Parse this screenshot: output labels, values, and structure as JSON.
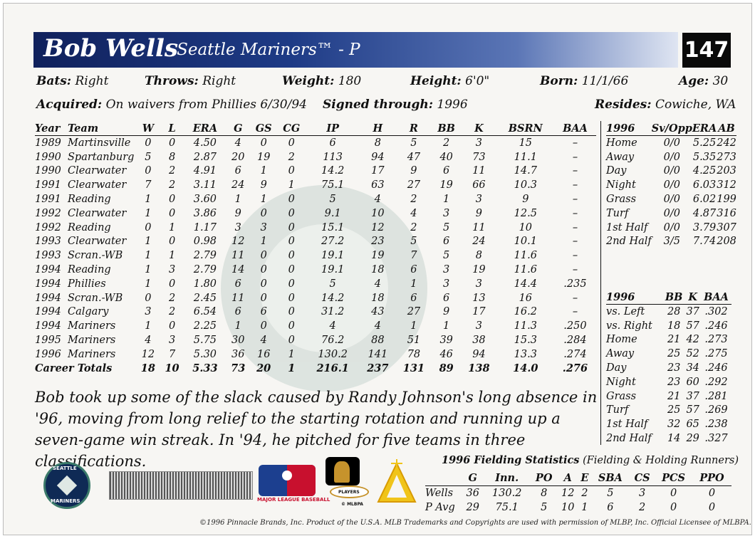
{
  "header": {
    "name": "Bob Wells",
    "team_position": "- Seattle Mariners™ - P",
    "card_number": "147"
  },
  "bio": {
    "bats_label": "Bats:",
    "bats": "Right",
    "throws_label": "Throws:",
    "throws": "Right",
    "weight_label": "Weight:",
    "weight": "180",
    "height_label": "Height:",
    "height": "6'0\"",
    "born_label": "Born:",
    "born": "11/1/66",
    "age_label": "Age:",
    "age": "30",
    "acquired_label": "Acquired:",
    "acquired": "On waivers from Phillies 6/30/94",
    "signed_label": "Signed through:",
    "signed": "1996",
    "resides_label": "Resides:",
    "resides": "Cowiche, WA"
  },
  "career": {
    "headers": [
      "Year",
      "Team",
      "W",
      "L",
      "ERA",
      "G",
      "GS",
      "CG",
      "IP",
      "H",
      "R",
      "BB",
      "K",
      "BSRN",
      "BAA"
    ],
    "rows": [
      [
        "1989",
        "Martinsville",
        "0",
        "0",
        "4.50",
        "4",
        "0",
        "0",
        "6",
        "8",
        "5",
        "2",
        "3",
        "15",
        "–"
      ],
      [
        "1990",
        "Spartanburg",
        "5",
        "8",
        "2.87",
        "20",
        "19",
        "2",
        "113",
        "94",
        "47",
        "40",
        "73",
        "11.1",
        "–"
      ],
      [
        "1990",
        "Clearwater",
        "0",
        "2",
        "4.91",
        "6",
        "1",
        "0",
        "14.2",
        "17",
        "9",
        "6",
        "11",
        "14.7",
        "–"
      ],
      [
        "1991",
        "Clearwater",
        "7",
        "2",
        "3.11",
        "24",
        "9",
        "1",
        "75.1",
        "63",
        "27",
        "19",
        "66",
        "10.3",
        "–"
      ],
      [
        "1991",
        "Reading",
        "1",
        "0",
        "3.60",
        "1",
        "1",
        "0",
        "5",
        "4",
        "2",
        "1",
        "3",
        "9",
        "–"
      ],
      [
        "1992",
        "Clearwater",
        "1",
        "0",
        "3.86",
        "9",
        "0",
        "0",
        "9.1",
        "10",
        "4",
        "3",
        "9",
        "12.5",
        "–"
      ],
      [
        "1992",
        "Reading",
        "0",
        "1",
        "1.17",
        "3",
        "3",
        "0",
        "15.1",
        "12",
        "2",
        "5",
        "11",
        "10",
        "–"
      ],
      [
        "1993",
        "Clearwater",
        "1",
        "0",
        "0.98",
        "12",
        "1",
        "0",
        "27.2",
        "23",
        "5",
        "6",
        "24",
        "10.1",
        "–"
      ],
      [
        "1993",
        "Scran.-WB",
        "1",
        "1",
        "2.79",
        "11",
        "0",
        "0",
        "19.1",
        "19",
        "7",
        "5",
        "8",
        "11.6",
        "–"
      ],
      [
        "1994",
        "Reading",
        "1",
        "3",
        "2.79",
        "14",
        "0",
        "0",
        "19.1",
        "18",
        "6",
        "3",
        "19",
        "11.6",
        "–"
      ],
      [
        "1994",
        "Phillies",
        "1",
        "0",
        "1.80",
        "6",
        "0",
        "0",
        "5",
        "4",
        "1",
        "3",
        "3",
        "14.4",
        ".235"
      ],
      [
        "1994",
        "Scran.-WB",
        "0",
        "2",
        "2.45",
        "11",
        "0",
        "0",
        "14.2",
        "18",
        "6",
        "6",
        "13",
        "16",
        "–"
      ],
      [
        "1994",
        "Calgary",
        "3",
        "2",
        "6.54",
        "6",
        "6",
        "0",
        "31.2",
        "43",
        "27",
        "9",
        "17",
        "16.2",
        "–"
      ],
      [
        "1994",
        "Mariners",
        "1",
        "0",
        "2.25",
        "1",
        "0",
        "0",
        "4",
        "4",
        "1",
        "1",
        "3",
        "11.3",
        ".250"
      ],
      [
        "1995",
        "Mariners",
        "4",
        "3",
        "5.75",
        "30",
        "4",
        "0",
        "76.2",
        "88",
        "51",
        "39",
        "38",
        "15.3",
        ".284"
      ],
      [
        "1996",
        "Mariners",
        "12",
        "7",
        "5.30",
        "36",
        "16",
        "1",
        "130.2",
        "141",
        "78",
        "46",
        "94",
        "13.3",
        ".274"
      ]
    ],
    "totals": [
      "Career Totals",
      "18",
      "10",
      "5.33",
      "73",
      "20",
      "1",
      "216.1",
      "237",
      "131",
      "89",
      "138",
      "14.0",
      ".276"
    ]
  },
  "splits_pitching": {
    "headers": [
      "1996",
      "Sv/Opp",
      "ERA",
      "AB"
    ],
    "rows": [
      [
        "Home",
        "0/0",
        "5.25",
        "242"
      ],
      [
        "Away",
        "0/0",
        "5.35",
        "273"
      ],
      [
        "Day",
        "0/0",
        "4.25",
        "203"
      ],
      [
        "Night",
        "0/0",
        "6.03",
        "312"
      ],
      [
        "Grass",
        "0/0",
        "6.02",
        "199"
      ],
      [
        "Turf",
        "0/0",
        "4.87",
        "316"
      ],
      [
        "1st Half",
        "0/0",
        "3.79",
        "307"
      ],
      [
        "2nd Half",
        "3/5",
        "7.74",
        "208"
      ]
    ]
  },
  "splits_batting": {
    "headers": [
      "1996",
      "BB",
      "K",
      "BAA"
    ],
    "rows": [
      [
        "vs. Left",
        "28",
        "37",
        ".302"
      ],
      [
        "vs. Right",
        "18",
        "57",
        ".246"
      ],
      [
        "Home",
        "21",
        "42",
        ".273"
      ],
      [
        "Away",
        "25",
        "52",
        ".275"
      ],
      [
        "Day",
        "23",
        "34",
        ".246"
      ],
      [
        "Night",
        "23",
        "60",
        ".292"
      ],
      [
        "Grass",
        "21",
        "37",
        ".281"
      ],
      [
        "Turf",
        "25",
        "57",
        ".269"
      ],
      [
        "1st Half",
        "32",
        "65",
        ".238"
      ],
      [
        "2nd Half",
        "14",
        "29",
        ".327"
      ]
    ]
  },
  "blurb": "Bob took up some of the slack caused by Randy Johnson's long absence in '96, moving from long relief to the starting rotation and running up a seven-game win streak. In '94, he pitched for five teams in three classifications.",
  "fielding": {
    "title": "1996 Fielding Statistics",
    "subtitle": "(Fielding & Holding Runners)",
    "headers": [
      "",
      "G",
      "Inn.",
      "PO",
      "A",
      "E",
      "SBA",
      "CS",
      "PCS",
      "PPO"
    ],
    "rows": [
      [
        "Wells",
        "36",
        "130.2",
        "8",
        "12",
        "2",
        "5",
        "3",
        "0",
        "0"
      ],
      [
        "P Avg",
        "29",
        "75.1",
        "5",
        "10",
        "1",
        "6",
        "2",
        "0",
        "0"
      ]
    ]
  },
  "logos": {
    "mariners_top": "SEATTLE",
    "mariners_bottom": "MARINERS",
    "mlb": "MAJOR LEAGUE BASEBALL",
    "mlbpa_players": "PLAYERS",
    "mlbpa_mark": "© MLBPA"
  },
  "copyright": "©1996 Pinnacle Brands, Inc. Product of the U.S.A. MLB Trademarks and Copyrights are used with permission of MLBP, Inc. Official Licensee of MLBPA."
}
